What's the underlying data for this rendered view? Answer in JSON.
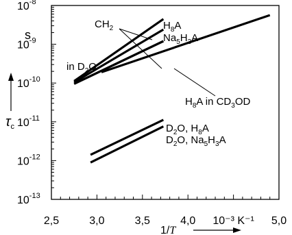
{
  "chart_data": {
    "type": "line",
    "xlim": [
      2.5,
      5.0
    ],
    "ylim_log10": [
      -13,
      -8
    ],
    "y_scale": "log",
    "grid": false,
    "legend": "none",
    "x_ticks": [
      {
        "value": 2.5,
        "label": "2,5"
      },
      {
        "value": 3.0,
        "label": "3,0"
      },
      {
        "value": 3.5,
        "label": "3,5"
      },
      {
        "value": 4.0,
        "label": "4,0"
      },
      {
        "value": 5.0,
        "label": "5,0"
      }
    ],
    "x_unit_label": "10⁻³ K⁻¹",
    "x_unit_position": 4.5,
    "y_ticks": [
      {
        "value": -13,
        "base": "10",
        "exp": "-13"
      },
      {
        "value": -12,
        "base": "10",
        "exp": "-12"
      },
      {
        "value": -11,
        "base": "10",
        "exp": "-11"
      },
      {
        "value": -10,
        "base": "10",
        "exp": "-10"
      },
      {
        "value": -9,
        "base": "10",
        "exp": "-9"
      },
      {
        "value": -8,
        "base": "10",
        "exp": "-8"
      }
    ],
    "x_axis": {
      "base": "1/",
      "var": "T"
    },
    "y_axis": {
      "symbol": "τ",
      "subscript": "c"
    },
    "y_unit": "s",
    "series": [
      {
        "x": [
          2.75,
          3.73
        ],
        "log10_y": [
          -9.95,
          -8.35
        ]
      },
      {
        "x": [
          2.75,
          3.73
        ],
        "log10_y": [
          -9.98,
          -8.62
        ]
      },
      {
        "x": [
          2.75,
          3.73
        ],
        "log10_y": [
          -10.02,
          -8.92
        ]
      },
      {
        "x": [
          2.75,
          3.73
        ],
        "log10_y": [
          -10.02,
          -8.92
        ]
      },
      {
        "x": [
          3.05,
          4.9
        ],
        "log10_y": [
          -9.72,
          -8.25
        ]
      },
      {
        "x": [
          2.93,
          3.73
        ],
        "log10_y": [
          -11.85,
          -10.95
        ]
      },
      {
        "x": [
          2.93,
          3.73
        ],
        "log10_y": [
          -12.05,
          -11.12
        ]
      }
    ]
  },
  "annotations": {
    "ch2": {
      "base": "CH",
      "sub": "2"
    },
    "h8a": {
      "base": "H",
      "sub": "8",
      "tail": "A"
    },
    "na5h3a": {
      "p1": "Na",
      "s1": "5",
      "p2": "H",
      "s2": "3",
      "p3": "A"
    },
    "in_d2o": {
      "p1": "in D",
      "s1": "2",
      "p2": "O"
    },
    "h8a_cd3od": {
      "p1": "H",
      "s1": "8",
      "p2": "A in CD",
      "s2": "3",
      "p3": "OD"
    },
    "d2o_h8a": {
      "p1": "D",
      "s1": "2",
      "p2": "O, H",
      "s2": "8",
      "p3": "A"
    },
    "d2o_na5h3a": {
      "p1": "D",
      "s1": "2",
      "p2": "O, Na",
      "s2": "5",
      "p3": "H",
      "s3": "3",
      "p4": "A"
    }
  }
}
